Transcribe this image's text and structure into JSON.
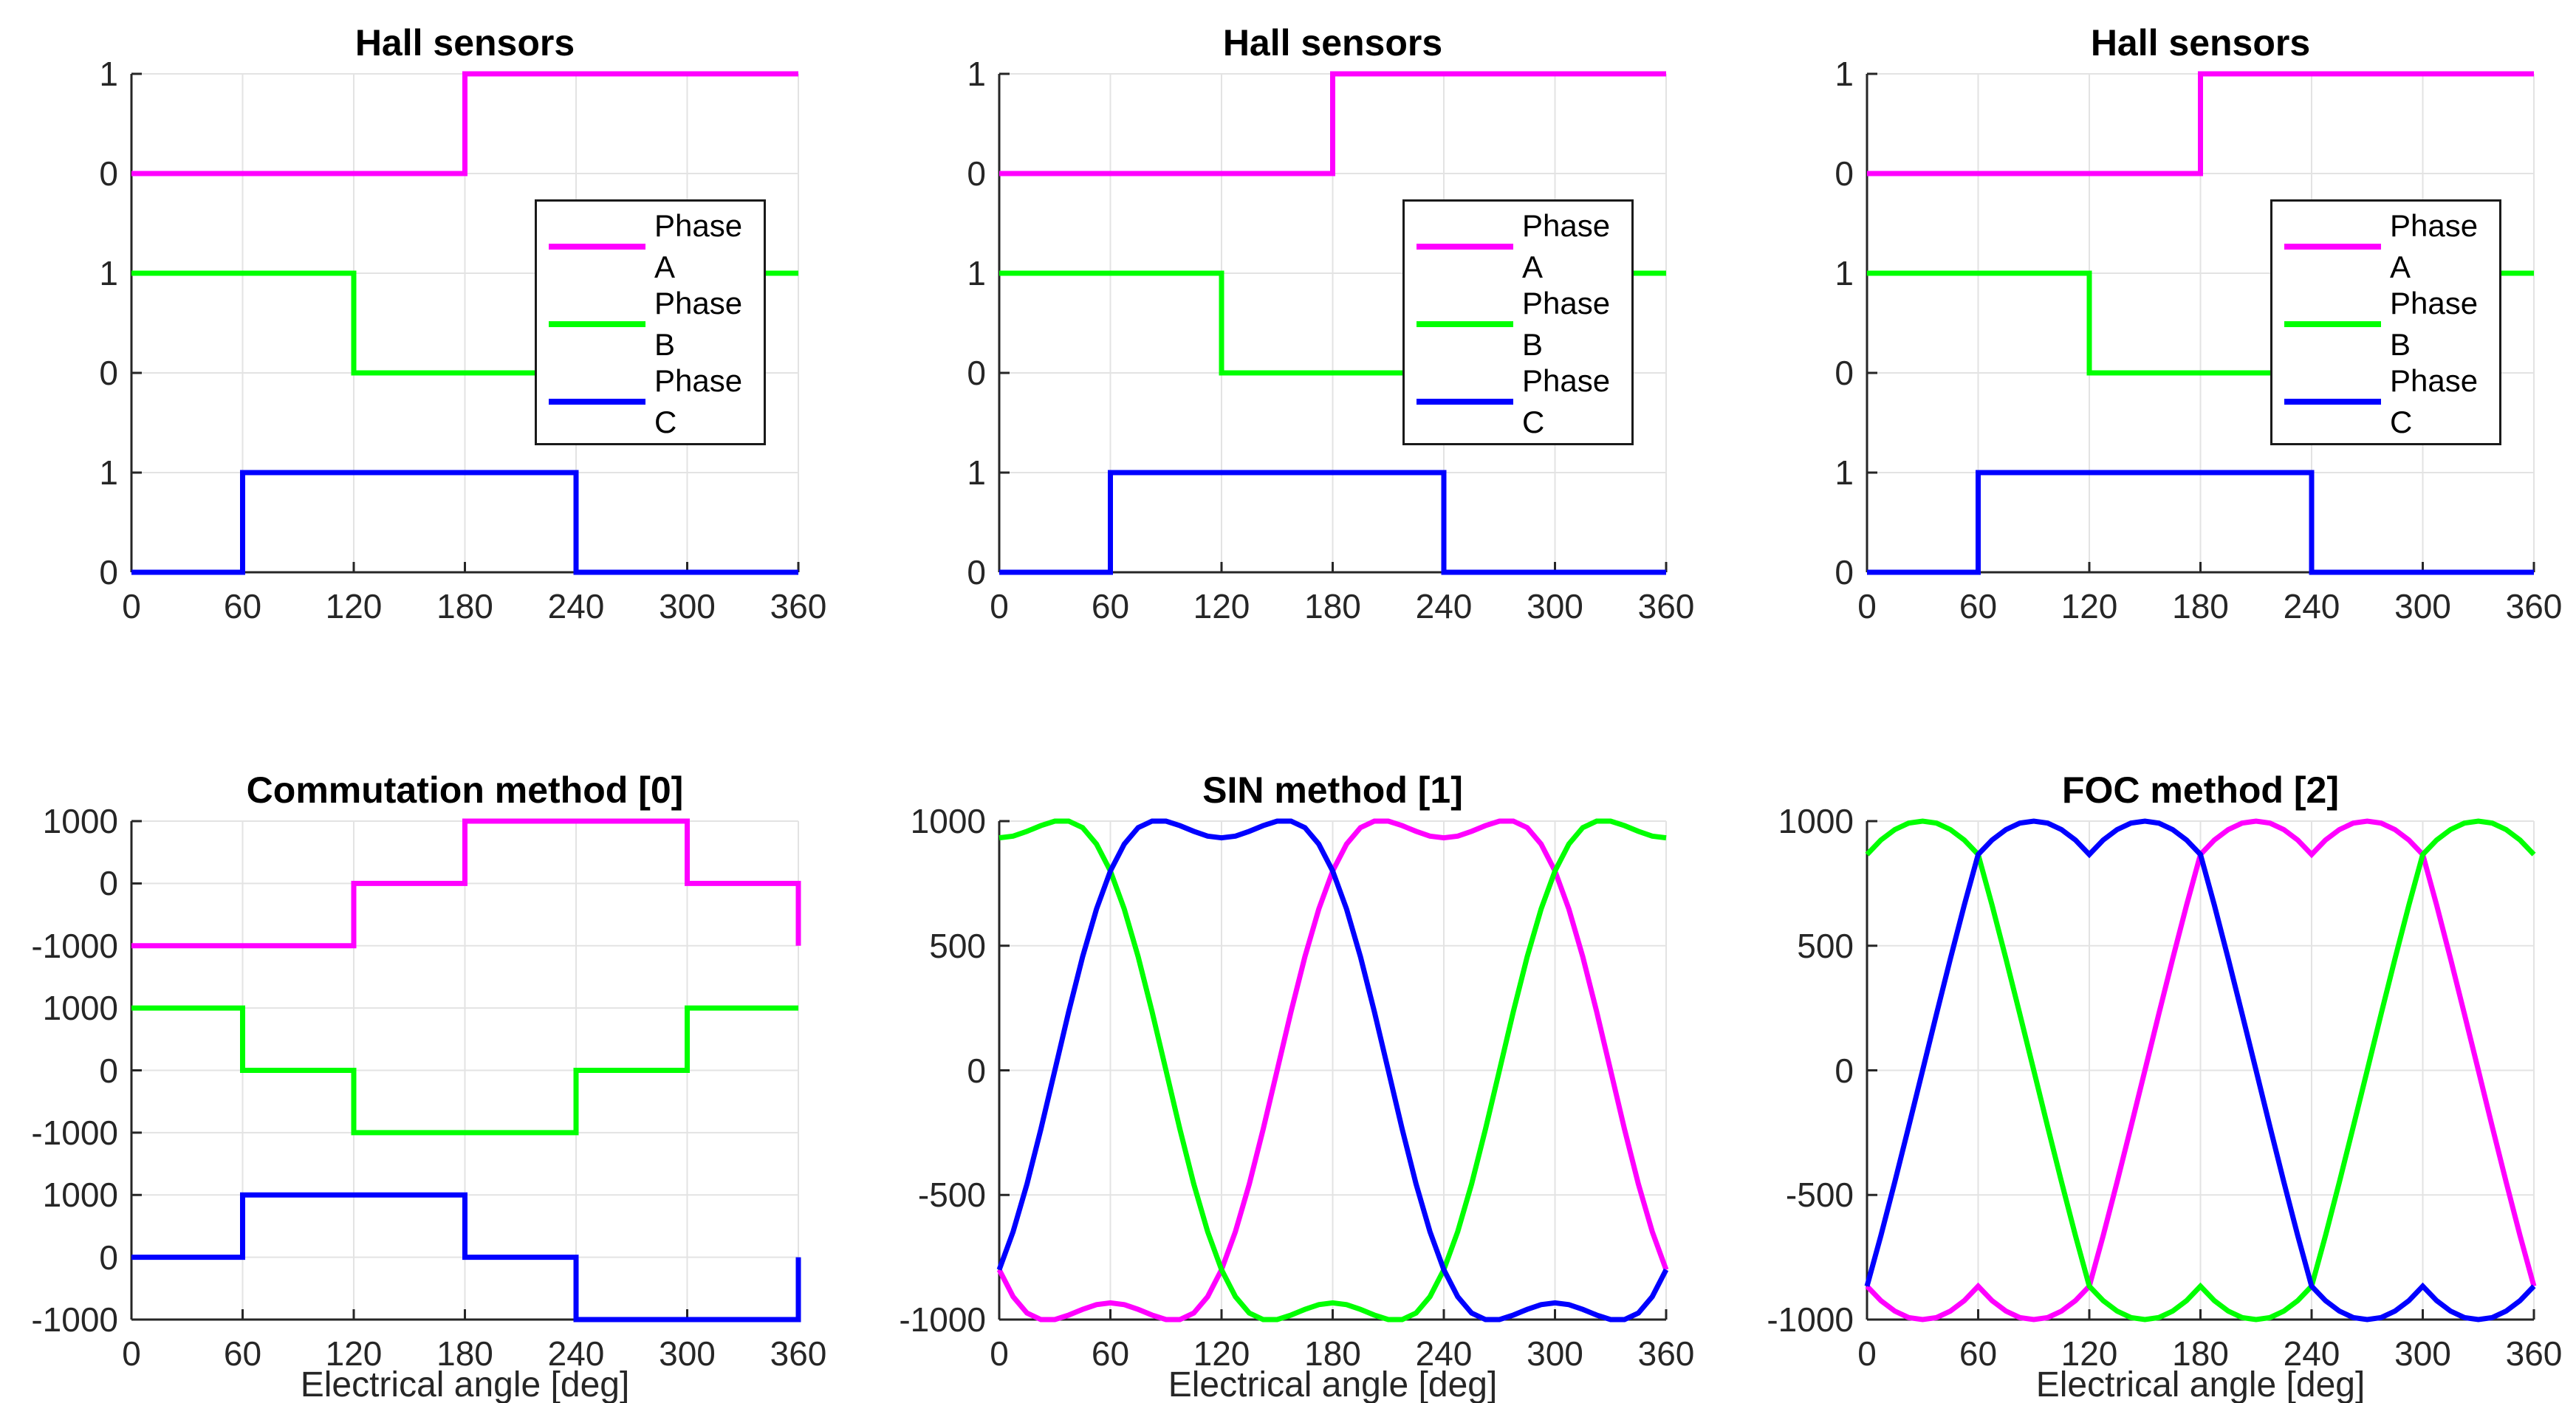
{
  "figure": {
    "background": "#FFFFFF"
  },
  "palette": {
    "phase_a": "#FF00FF",
    "phase_b": "#00FF00",
    "phase_c": "#0000FF",
    "axis": "#262626",
    "grid": "#E3E3E3",
    "title_color": "#000000"
  },
  "chart_data": [
    {
      "type": "line",
      "title": "Hall sensors",
      "xlabel": null,
      "xlim": [
        0,
        360
      ],
      "xticks": [
        0,
        60,
        120,
        180,
        240,
        300,
        360
      ],
      "grid": true,
      "y_units_max": 5,
      "ytick_units": [
        5,
        4,
        3,
        2,
        1,
        0
      ],
      "ytick_labels": [
        "1",
        "0",
        "1",
        "0",
        "1",
        "0"
      ],
      "legend": [
        {
          "label": "Phase A"
        },
        {
          "label": "Phase B"
        },
        {
          "label": "Phase C"
        }
      ],
      "legend_position": "northeast",
      "series": [
        {
          "name": "Phase A",
          "color": "#FF00FF",
          "offset": 4,
          "scale": 1,
          "points": [
            [
              0,
              0
            ],
            [
              180,
              0
            ],
            [
              180,
              1
            ],
            [
              360,
              1
            ]
          ]
        },
        {
          "name": "Phase B",
          "color": "#00FF00",
          "offset": 2,
          "scale": 1,
          "points": [
            [
              0,
              1
            ],
            [
              120,
              1
            ],
            [
              120,
              0
            ],
            [
              300,
              0
            ],
            [
              300,
              1
            ],
            [
              360,
              1
            ]
          ]
        },
        {
          "name": "Phase C",
          "color": "#0000FF",
          "offset": 0,
          "scale": 1,
          "points": [
            [
              0,
              0
            ],
            [
              60,
              0
            ],
            [
              60,
              1
            ],
            [
              240,
              1
            ],
            [
              240,
              0
            ],
            [
              360,
              0
            ]
          ]
        }
      ]
    },
    {
      "type": "line",
      "title": "Hall sensors",
      "xlabel": null,
      "xlim": [
        0,
        360
      ],
      "xticks": [
        0,
        60,
        120,
        180,
        240,
        300,
        360
      ],
      "grid": true,
      "y_units_max": 5,
      "ytick_units": [
        5,
        4,
        3,
        2,
        1,
        0
      ],
      "ytick_labels": [
        "1",
        "0",
        "1",
        "0",
        "1",
        "0"
      ],
      "legend": [
        {
          "label": "Phase A"
        },
        {
          "label": "Phase B"
        },
        {
          "label": "Phase C"
        }
      ],
      "legend_position": "northeast",
      "series": [
        {
          "name": "Phase A",
          "color": "#FF00FF",
          "offset": 4,
          "scale": 1,
          "points": [
            [
              0,
              0
            ],
            [
              180,
              0
            ],
            [
              180,
              1
            ],
            [
              360,
              1
            ]
          ]
        },
        {
          "name": "Phase B",
          "color": "#00FF00",
          "offset": 2,
          "scale": 1,
          "points": [
            [
              0,
              1
            ],
            [
              120,
              1
            ],
            [
              120,
              0
            ],
            [
              300,
              0
            ],
            [
              300,
              1
            ],
            [
              360,
              1
            ]
          ]
        },
        {
          "name": "Phase C",
          "color": "#0000FF",
          "offset": 0,
          "scale": 1,
          "points": [
            [
              0,
              0
            ],
            [
              60,
              0
            ],
            [
              60,
              1
            ],
            [
              240,
              1
            ],
            [
              240,
              0
            ],
            [
              360,
              0
            ]
          ]
        }
      ]
    },
    {
      "type": "line",
      "title": "Hall sensors",
      "xlabel": null,
      "xlim": [
        0,
        360
      ],
      "xticks": [
        0,
        60,
        120,
        180,
        240,
        300,
        360
      ],
      "grid": true,
      "y_units_max": 5,
      "ytick_units": [
        5,
        4,
        3,
        2,
        1,
        0
      ],
      "ytick_labels": [
        "1",
        "0",
        "1",
        "0",
        "1",
        "0"
      ],
      "legend": [
        {
          "label": "Phase A"
        },
        {
          "label": "Phase B"
        },
        {
          "label": "Phase C"
        }
      ],
      "legend_position": "northeast",
      "series": [
        {
          "name": "Phase A",
          "color": "#FF00FF",
          "offset": 4,
          "scale": 1,
          "points": [
            [
              0,
              0
            ],
            [
              180,
              0
            ],
            [
              180,
              1
            ],
            [
              360,
              1
            ]
          ]
        },
        {
          "name": "Phase B",
          "color": "#00FF00",
          "offset": 2,
          "scale": 1,
          "points": [
            [
              0,
              1
            ],
            [
              120,
              1
            ],
            [
              120,
              0
            ],
            [
              300,
              0
            ],
            [
              300,
              1
            ],
            [
              360,
              1
            ]
          ]
        },
        {
          "name": "Phase C",
          "color": "#0000FF",
          "offset": 0,
          "scale": 1,
          "points": [
            [
              0,
              0
            ],
            [
              60,
              0
            ],
            [
              60,
              1
            ],
            [
              240,
              1
            ],
            [
              240,
              0
            ],
            [
              360,
              0
            ]
          ]
        }
      ]
    },
    {
      "type": "line",
      "title": "Commutation method [0]",
      "xlabel": "Electrical angle [deg]",
      "xlim": [
        0,
        360
      ],
      "xticks": [
        0,
        60,
        120,
        180,
        240,
        300,
        360
      ],
      "grid": true,
      "y_units_max": 8,
      "ytick_units": [
        8,
        7,
        6,
        5,
        4,
        3,
        2,
        1,
        0
      ],
      "ytick_labels": [
        "1000",
        "0",
        "-1000",
        "1000",
        "0",
        "-1000",
        "1000",
        "0",
        "-1000"
      ],
      "legend": null,
      "series": [
        {
          "name": "Phase A",
          "color": "#FF00FF",
          "offset": 7,
          "scale": 0.001,
          "points": [
            [
              0,
              -1000
            ],
            [
              120,
              -1000
            ],
            [
              120,
              0
            ],
            [
              180,
              0
            ],
            [
              180,
              1000
            ],
            [
              300,
              1000
            ],
            [
              300,
              0
            ],
            [
              360,
              0
            ],
            [
              360,
              -1000
            ]
          ]
        },
        {
          "name": "Phase B",
          "color": "#00FF00",
          "offset": 4,
          "scale": 0.001,
          "points": [
            [
              0,
              1000
            ],
            [
              60,
              1000
            ],
            [
              60,
              0
            ],
            [
              120,
              0
            ],
            [
              120,
              -1000
            ],
            [
              240,
              -1000
            ],
            [
              240,
              0
            ],
            [
              300,
              0
            ],
            [
              300,
              1000
            ],
            [
              360,
              1000
            ]
          ]
        },
        {
          "name": "Phase C",
          "color": "#0000FF",
          "offset": 1,
          "scale": 0.001,
          "points": [
            [
              0,
              0
            ],
            [
              60,
              0
            ],
            [
              60,
              1000
            ],
            [
              180,
              1000
            ],
            [
              180,
              0
            ],
            [
              240,
              0
            ],
            [
              240,
              -1000
            ],
            [
              360,
              -1000
            ],
            [
              360,
              0
            ]
          ]
        }
      ]
    },
    {
      "type": "line",
      "title": "SIN method [1]",
      "xlabel": "Electrical angle [deg]",
      "xlim": [
        0,
        360
      ],
      "xticks": [
        0,
        60,
        120,
        180,
        240,
        300,
        360
      ],
      "grid": true,
      "y_units_max": 4,
      "ytick_units": [
        4,
        3,
        2,
        1,
        0
      ],
      "ytick_labels": [
        "1000",
        "500",
        "0",
        "-500",
        "-1000"
      ],
      "legend": null,
      "series": [
        {
          "name": "Phase A",
          "color": "#FF00FF",
          "offset": 2,
          "scale": 0.002,
          "x_start": 0,
          "x_step": 7.5,
          "values": [
            -800,
            -908,
            -974,
            -1000,
            -1000,
            -982,
            -959,
            -940,
            -933,
            -940,
            -959,
            -982,
            -1000,
            -1000,
            -974,
            -908,
            -800,
            -647,
            -456,
            -236,
            0,
            236,
            456,
            647,
            800,
            908,
            974,
            1000,
            1000,
            982,
            959,
            940,
            933,
            940,
            959,
            982,
            1000,
            1000,
            974,
            908,
            800,
            647,
            456,
            236,
            0,
            -236,
            -456,
            -647,
            -800
          ]
        },
        {
          "name": "Phase B",
          "color": "#00FF00",
          "offset": 2,
          "scale": 0.002,
          "x_start": 0,
          "x_step": 7.5,
          "values": [
            933,
            940,
            959,
            982,
            1000,
            1000,
            974,
            908,
            800,
            647,
            456,
            236,
            0,
            -236,
            -456,
            -647,
            -800,
            -908,
            -974,
            -1000,
            -1000,
            -982,
            -959,
            -940,
            -933,
            -940,
            -959,
            -982,
            -1000,
            -1000,
            -974,
            -908,
            -800,
            -647,
            -456,
            -236,
            0,
            236,
            456,
            647,
            800,
            908,
            974,
            1000,
            1000,
            982,
            959,
            940,
            933
          ]
        },
        {
          "name": "Phase C",
          "color": "#0000FF",
          "offset": 2,
          "scale": 0.002,
          "x_start": 0,
          "x_step": 7.5,
          "values": [
            -800,
            -647,
            -456,
            -236,
            0,
            236,
            456,
            647,
            800,
            908,
            974,
            1000,
            1000,
            982,
            959,
            940,
            933,
            940,
            959,
            982,
            1000,
            1000,
            974,
            908,
            800,
            647,
            456,
            236,
            0,
            -236,
            -456,
            -647,
            -800,
            -908,
            -974,
            -1000,
            -1000,
            -982,
            -959,
            -940,
            -933,
            -940,
            -959,
            -982,
            -1000,
            -1000,
            -974,
            -908,
            -800
          ]
        }
      ]
    },
    {
      "type": "line",
      "title": "FOC method [2]",
      "xlabel": "Electrical angle [deg]",
      "xlim": [
        0,
        360
      ],
      "xticks": [
        0,
        60,
        120,
        180,
        240,
        300,
        360
      ],
      "grid": true,
      "y_units_max": 4,
      "ytick_units": [
        4,
        3,
        2,
        1,
        0
      ],
      "ytick_labels": [
        "1000",
        "500",
        "0",
        "-500",
        "-1000"
      ],
      "legend": null,
      "series": [
        {
          "name": "Phase A",
          "color": "#FF00FF",
          "offset": 2,
          "scale": 0.002,
          "x_start": 0,
          "x_step": 7.5,
          "values": [
            -866,
            -924,
            -966,
            -992,
            -1000,
            -992,
            -966,
            -924,
            -866,
            -924,
            -966,
            -992,
            -1000,
            -992,
            -966,
            -924,
            -866,
            -663,
            -448,
            -226,
            0,
            226,
            448,
            663,
            866,
            924,
            966,
            992,
            1000,
            992,
            966,
            924,
            866,
            924,
            966,
            992,
            1000,
            992,
            966,
            924,
            866,
            663,
            448,
            226,
            0,
            -226,
            -448,
            -663,
            -866
          ]
        },
        {
          "name": "Phase B",
          "color": "#00FF00",
          "offset": 2,
          "scale": 0.002,
          "x_start": 0,
          "x_step": 7.5,
          "values": [
            866,
            924,
            966,
            992,
            1000,
            992,
            966,
            924,
            866,
            663,
            448,
            226,
            0,
            -226,
            -448,
            -663,
            -866,
            -924,
            -966,
            -992,
            -1000,
            -992,
            -966,
            -924,
            -866,
            -924,
            -966,
            -992,
            -1000,
            -992,
            -966,
            -924,
            -866,
            -663,
            -448,
            -226,
            0,
            226,
            448,
            663,
            866,
            924,
            966,
            992,
            1000,
            992,
            966,
            924,
            866
          ]
        },
        {
          "name": "Phase C",
          "color": "#0000FF",
          "offset": 2,
          "scale": 0.002,
          "x_start": 0,
          "x_step": 7.5,
          "values": [
            -866,
            -663,
            -448,
            -226,
            0,
            226,
            448,
            663,
            866,
            924,
            966,
            992,
            1000,
            992,
            966,
            924,
            866,
            924,
            966,
            992,
            1000,
            992,
            966,
            924,
            866,
            663,
            448,
            226,
            0,
            -226,
            -448,
            -663,
            -866,
            -924,
            -966,
            -992,
            -1000,
            -992,
            -966,
            -924,
            -866,
            -924,
            -966,
            -992,
            -1000,
            -992,
            -966,
            -924,
            -866
          ]
        }
      ]
    }
  ]
}
